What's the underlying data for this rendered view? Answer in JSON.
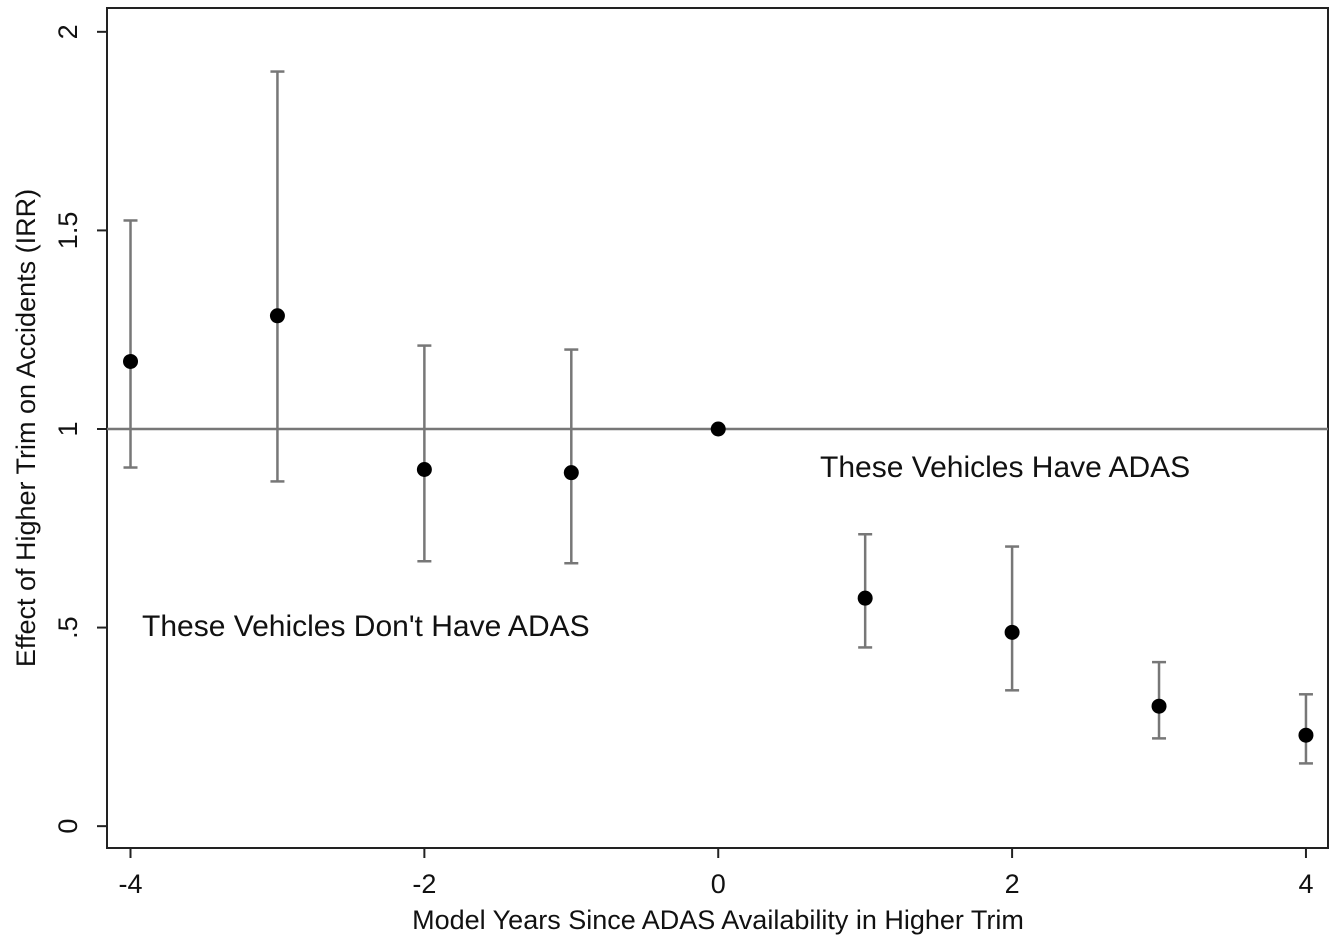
{
  "chart_data": {
    "type": "scatter",
    "xlabel": "Model Years Since ADAS Availability in Higher Trim",
    "ylabel": "Effect of Higher Trim on Accidents (IRR)",
    "x": [
      -4,
      -3,
      -2,
      -1,
      0,
      1,
      2,
      3,
      4
    ],
    "series": [
      {
        "color": "#000000",
        "error_color": "#777777",
        "values": [
          1.17,
          1.285,
          0.898,
          0.89,
          1,
          0.574,
          0.488,
          0.302,
          0.229
        ],
        "lower": [
          0.903,
          0.868,
          0.667,
          0.662,
          1,
          0.45,
          0.342,
          0.221,
          0.158
        ],
        "upper": [
          1.525,
          1.9,
          1.21,
          1.2,
          1,
          0.735,
          0.704,
          0.413,
          0.332
        ]
      }
    ],
    "reference_line": 1,
    "annotations": [
      "These Vehicles Have ADAS",
      "These Vehicles Don't Have ADAS"
    ],
    "xlim": [
      -4.16,
      4.15
    ],
    "ylim": [
      -0.055,
      2.06
    ],
    "xticks": [
      -4,
      -2,
      0,
      2,
      4
    ],
    "yticks": [
      0,
      {
        "value": 0.5,
        "label": ".5"
      },
      1,
      1.5,
      2
    ]
  }
}
